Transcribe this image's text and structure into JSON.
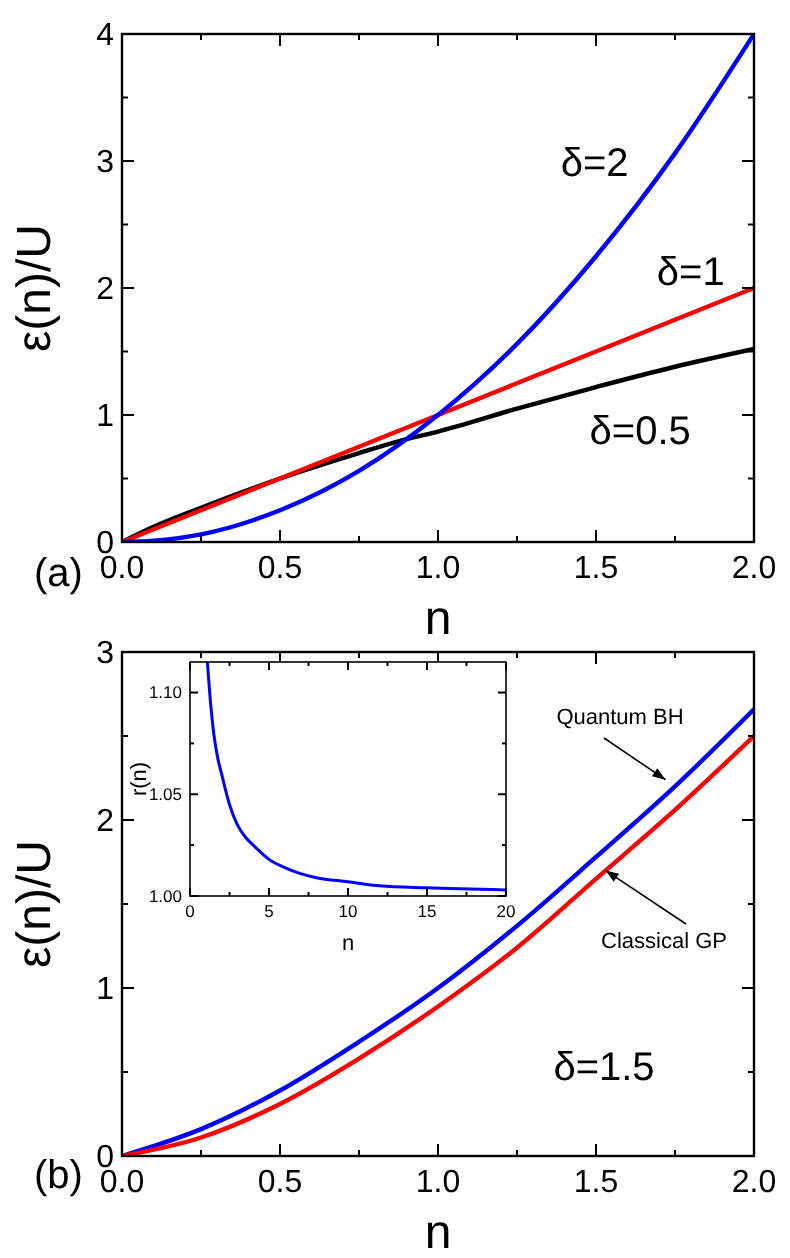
{
  "chart_data": [
    {
      "type": "line",
      "xlabel": "n",
      "ylabel": "ε(n)/U",
      "xlim": [
        0,
        2
      ],
      "ylim": [
        0,
        4
      ],
      "xticks": [
        {
          "value": 0,
          "label": "0.0"
        },
        {
          "value": 0.25,
          "label": null
        },
        {
          "value": 0.5,
          "label": "0.5"
        },
        {
          "value": 0.75,
          "label": null
        },
        {
          "value": 1,
          "label": "1.0"
        },
        {
          "value": 1.25,
          "label": null
        },
        {
          "value": 1.5,
          "label": "1.5"
        },
        {
          "value": 1.75,
          "label": null
        },
        {
          "value": 2,
          "label": "2.0"
        }
      ],
      "yticks": [
        0,
        {
          "value": 0.5,
          "label": null
        },
        1,
        {
          "value": 1.5,
          "label": null
        },
        2,
        {
          "value": 2.5,
          "label": null
        },
        3,
        {
          "value": 3.5,
          "label": null
        },
        4
      ],
      "grid": false,
      "marker": "none",
      "line_style": "solid",
      "series": [
        {
          "color": "#000000",
          "x": [
            0,
            0.1,
            0.25,
            0.5,
            0.75,
            0.9,
            1,
            1.25,
            1.5,
            1.75,
            2
          ],
          "values": [
            0,
            0.12,
            0.27,
            0.5,
            0.7,
            0.81,
            0.87,
            1.05,
            1.22,
            1.38,
            1.52
          ]
        },
        {
          "color": "#ff0000",
          "x": [
            0,
            0.5,
            1,
            1.5,
            2
          ],
          "values": [
            0,
            0.5,
            1,
            1.5,
            2
          ]
        },
        {
          "color": "#0000ff",
          "x": [
            0,
            0.1,
            0.25,
            0.5,
            0.75,
            1,
            1.25,
            1.5,
            1.75,
            2
          ],
          "values": [
            0,
            0.01,
            0.06,
            0.25,
            0.56,
            1,
            1.56,
            2.25,
            3.06,
            4
          ]
        }
      ],
      "annotations": [
        {
          "text": "δ=2",
          "x": 1.73,
          "y": 2.98
        },
        {
          "text": "δ=1",
          "x": 1.8,
          "y": 1.8
        },
        {
          "text": "δ=0.5",
          "x": 1.64,
          "y": 1.31
        },
        "(a)"
      ]
    },
    {
      "type": "line",
      "xlabel": "n",
      "ylabel": "ε(n)/U",
      "xlim": [
        0,
        2
      ],
      "ylim": [
        0,
        3
      ],
      "xticks": [
        {
          "value": 0,
          "label": "0.0"
        },
        {
          "value": 0.25,
          "label": null
        },
        {
          "value": 0.5,
          "label": "0.5"
        },
        {
          "value": 0.75,
          "label": null
        },
        {
          "value": 1,
          "label": "1.0"
        },
        {
          "value": 1.25,
          "label": null
        },
        {
          "value": 1.5,
          "label": "1.5"
        },
        {
          "value": 1.75,
          "label": null
        },
        {
          "value": 2,
          "label": "2.0"
        }
      ],
      "yticks": [
        0,
        {
          "value": 0.5,
          "label": null
        },
        1,
        {
          "value": 1.5,
          "label": null
        },
        2,
        {
          "value": 2.5,
          "label": null
        },
        3
      ],
      "grid": false,
      "marker": "none",
      "line_style": "solid",
      "series": [
        {
          "color": "#0000ff",
          "x": [
            0,
            0.25,
            0.5,
            0.75,
            1,
            1.25,
            1.5,
            1.75,
            2
          ],
          "values": [
            0,
            0.16,
            0.39,
            0.68,
            1.0,
            1.37,
            1.78,
            2.2,
            2.66
          ]
        },
        {
          "color": "#ff0000",
          "x": [
            0,
            0.25,
            0.5,
            0.75,
            1,
            1.25,
            1.5,
            1.75,
            2
          ],
          "values": [
            0,
            0.11,
            0.31,
            0.58,
            0.89,
            1.24,
            1.65,
            2.06,
            2.5
          ]
        }
      ],
      "annotations": [
        {
          "text": "Quantum BH",
          "x": 1.72,
          "y": 2.24
        },
        {
          "text": "Classical GP",
          "x": 1.53,
          "y": 1.7
        },
        "δ=1.5",
        "(b)"
      ]
    },
    {
      "type": "line",
      "xlabel": "n",
      "ylabel": "r(n)",
      "xlim": [
        0,
        20
      ],
      "ylim": [
        1,
        1.115
      ],
      "xticks": [
        0,
        {
          "value": 2.5,
          "label": null
        },
        5,
        {
          "value": 7.5,
          "label": null
        },
        10,
        {
          "value": 12.5,
          "label": null
        },
        15,
        {
          "value": 17.5,
          "label": null
        },
        20
      ],
      "yticks": [
        {
          "value": 1,
          "label": "1.00"
        },
        {
          "value": 1.025,
          "label": null
        },
        {
          "value": 1.05,
          "label": "1.05"
        },
        {
          "value": 1.075,
          "label": null
        },
        {
          "value": 1.1,
          "label": "1.10"
        }
      ],
      "grid": false,
      "marker": "none",
      "line_style": "solid",
      "series": [
        {
          "color": "#0000ff",
          "x": [
            1.1,
            1.3,
            1.5,
            1.75,
            2,
            2.5,
            3,
            3.5,
            4,
            5,
            6,
            7,
            8,
            10,
            12,
            15,
            20
          ],
          "values": [
            1.115,
            1.095,
            1.08,
            1.068,
            1.06,
            1.045,
            1.035,
            1.029,
            1.025,
            1.018,
            1.014,
            1.011,
            1.009,
            1.007,
            1.005,
            1.004,
            1.003
          ]
        }
      ]
    }
  ]
}
